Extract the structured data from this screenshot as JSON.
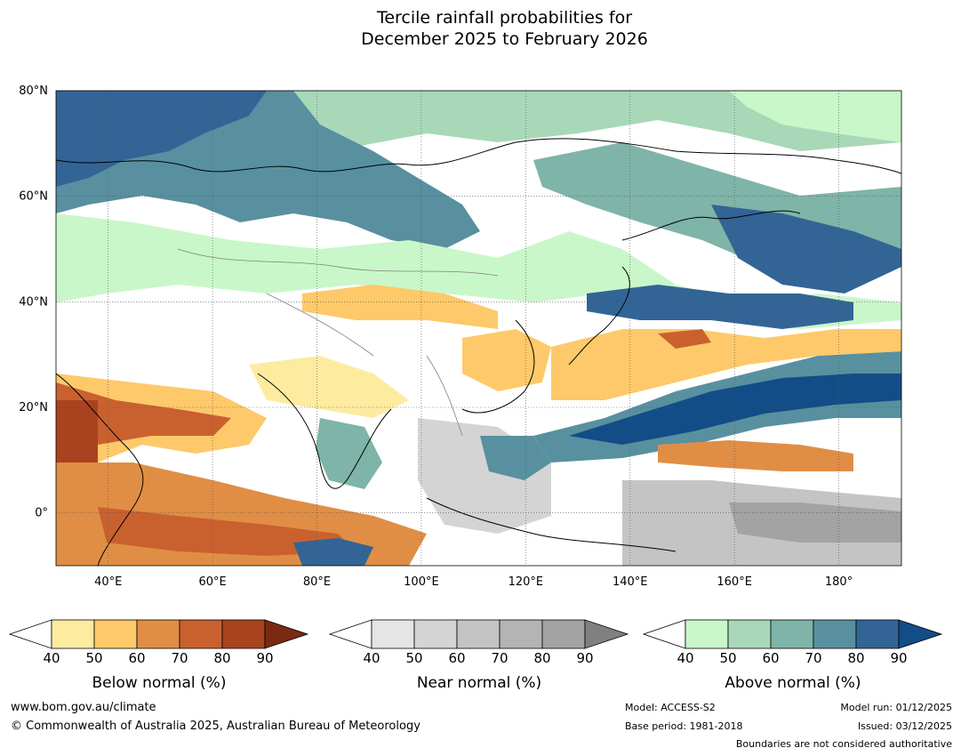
{
  "title": {
    "line1": "Tercile rainfall probabilities for",
    "line2": "December 2025 to February 2026"
  },
  "map": {
    "lat_labels": [
      "80°N",
      "60°N",
      "40°N",
      "20°N",
      "0°"
    ],
    "lon_labels": [
      "40°E",
      "60°E",
      "80°E",
      "100°E",
      "120°E",
      "140°E",
      "160°E",
      "180°"
    ],
    "extent": {
      "lon": [
        30,
        192
      ],
      "lat": [
        -10,
        80
      ]
    }
  },
  "legends": [
    {
      "id": "below",
      "label": "Below normal (%)",
      "ticks": [
        "40",
        "50",
        "60",
        "70",
        "80",
        "90"
      ],
      "colors": [
        "#fdeba0",
        "#fdc96a",
        "#e08e45",
        "#c9612f",
        "#a9431f",
        "#7a2a12"
      ]
    },
    {
      "id": "near",
      "label": "Near normal (%)",
      "ticks": [
        "40",
        "50",
        "60",
        "70",
        "80",
        "90"
      ],
      "colors": [
        "#e5e5e5",
        "#d4d4d4",
        "#c4c4c4",
        "#b4b4b4",
        "#a3a3a3",
        "#808080"
      ]
    },
    {
      "id": "above",
      "label": "Above normal (%)",
      "ticks": [
        "40",
        "50",
        "60",
        "70",
        "80",
        "90"
      ],
      "colors": [
        "#c9f7c9",
        "#a8d8b8",
        "#7fb4a8",
        "#5890a0",
        "#326496",
        "#134d87"
      ]
    }
  ],
  "footer": {
    "website": "www.bom.gov.au/climate",
    "copyright": "© Commonwealth of Australia 2025, Australian Bureau of Meteorology",
    "model": "Model: ACCESS-S2",
    "base_period": "Base period: 1981-2018",
    "model_run": "Model run: 01/12/2025",
    "issued": "Issued: 03/12/2025",
    "boundaries": "Boundaries are not considered authoritative"
  }
}
